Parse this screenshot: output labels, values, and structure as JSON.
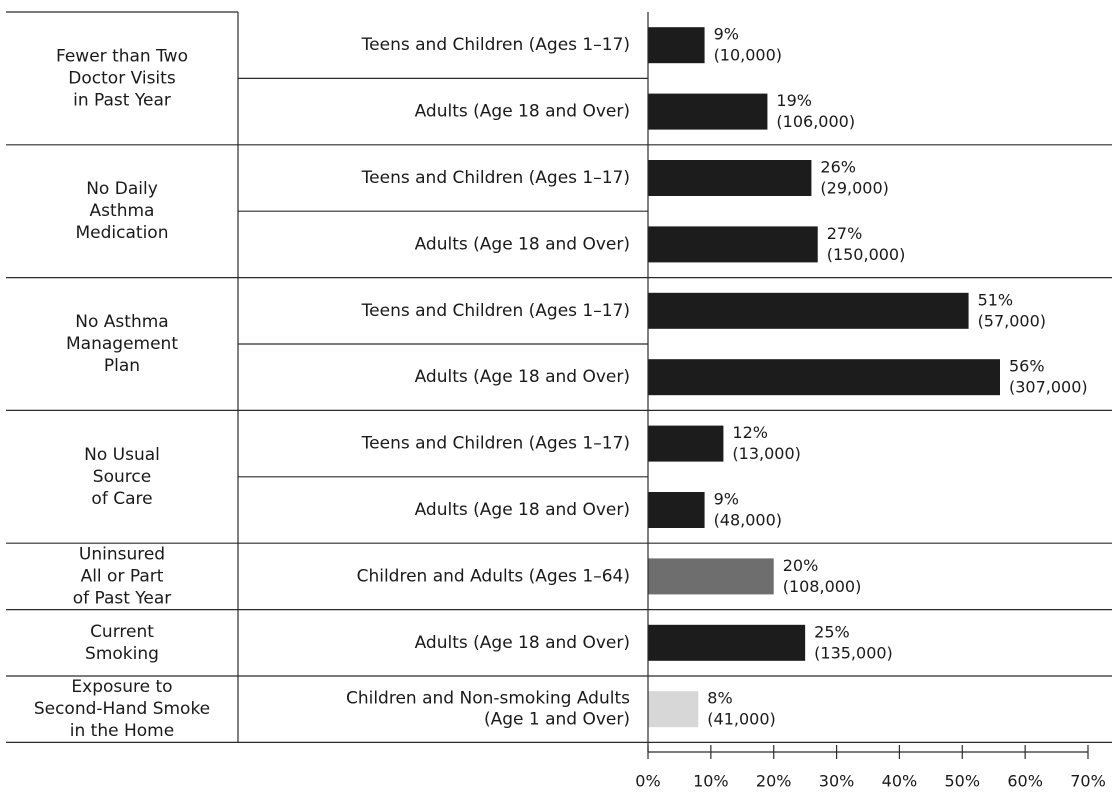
{
  "chart_data": {
    "type": "bar",
    "orientation": "horizontal",
    "xlim": [
      0,
      70
    ],
    "x_ticks": [
      "0%",
      "10%",
      "20%",
      "30%",
      "40%",
      "50%",
      "60%",
      "70%"
    ],
    "colors": {
      "bar": "#1c1c1c",
      "bar_gray": "#6e6e6e",
      "bar_light": "#d7d7d7"
    },
    "groups": [
      {
        "label": [
          "Fewer than Two",
          "Doctor Visits",
          "in Past Year"
        ],
        "bars": [
          {
            "label": [
              "Teens and Children (Ages 1–17)"
            ],
            "value": 9,
            "pct": "9%",
            "count": "(10,000)",
            "color": "#1c1c1c"
          },
          {
            "label": [
              "Adults (Age 18 and Over)"
            ],
            "value": 19,
            "pct": "19%",
            "count": "(106,000)",
            "color": "#1c1c1c"
          }
        ]
      },
      {
        "label": [
          "No Daily",
          "Asthma",
          "Medication"
        ],
        "bars": [
          {
            "label": [
              "Teens and Children (Ages 1–17)"
            ],
            "value": 26,
            "pct": "26%",
            "count": "(29,000)",
            "color": "#1c1c1c"
          },
          {
            "label": [
              "Adults (Age 18 and Over)"
            ],
            "value": 27,
            "pct": "27%",
            "count": "(150,000)",
            "color": "#1c1c1c"
          }
        ]
      },
      {
        "label": [
          "No Asthma",
          "Management",
          "Plan"
        ],
        "bars": [
          {
            "label": [
              "Teens and Children (Ages 1–17)"
            ],
            "value": 51,
            "pct": "51%",
            "count": "(57,000)",
            "color": "#1c1c1c"
          },
          {
            "label": [
              "Adults (Age 18 and Over)"
            ],
            "value": 56,
            "pct": "56%",
            "count": "(307,000)",
            "color": "#1c1c1c"
          }
        ]
      },
      {
        "label": [
          "No Usual",
          "Source",
          "of Care"
        ],
        "bars": [
          {
            "label": [
              "Teens and Children (Ages 1–17)"
            ],
            "value": 12,
            "pct": "12%",
            "count": "(13,000)",
            "color": "#1c1c1c"
          },
          {
            "label": [
              "Adults (Age 18 and Over)"
            ],
            "value": 9,
            "pct": "9%",
            "count": "(48,000)",
            "color": "#1c1c1c"
          }
        ]
      },
      {
        "label": [
          "Uninsured",
          "All or Part",
          "of Past Year"
        ],
        "bars": [
          {
            "label": [
              "Children and Adults (Ages 1–64)"
            ],
            "value": 20,
            "pct": "20%",
            "count": "(108,000)",
            "color": "#6e6e6e"
          }
        ]
      },
      {
        "label": [
          "Current",
          "Smoking"
        ],
        "bars": [
          {
            "label": [
              "Adults (Age 18 and Over)"
            ],
            "value": 25,
            "pct": "25%",
            "count": "(135,000)",
            "color": "#1c1c1c"
          }
        ]
      },
      {
        "label": [
          "Exposure to",
          "Second-Hand Smoke",
          "in the Home"
        ],
        "bars": [
          {
            "label": [
              "Children and Non-smoking Adults",
              "(Age 1 and Over)"
            ],
            "value": 8,
            "pct": "8%",
            "count": "(41,000)",
            "color": "#d7d7d7"
          }
        ]
      }
    ]
  }
}
